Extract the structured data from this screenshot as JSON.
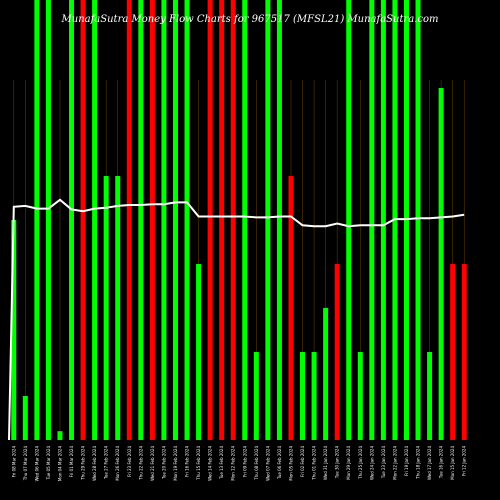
{
  "chart_data": {
    "type": "bar",
    "title": "MunafaSutra Money Flow Charts for 967517 (MFSL21) MunafaSutra.com",
    "colors": {
      "background": "#000000",
      "up": "#00ff00",
      "down": "#ff0000",
      "line": "#ffffff",
      "grid": "#5a3a00"
    },
    "ylim": [
      0,
      100
    ],
    "bars": [
      {
        "date": "Fri 08 Mar 2024",
        "value": 50,
        "color": "up"
      },
      {
        "date": "Thu 07 Mar 2024",
        "value": 10,
        "color": "up"
      },
      {
        "date": "Wed 06 Mar 2024",
        "value": 100,
        "color": "up"
      },
      {
        "date": "Tue 05 Mar 2024",
        "value": 100,
        "color": "up"
      },
      {
        "date": "Mon 04 Mar 2024",
        "value": 2,
        "color": "up"
      },
      {
        "date": "Fri 01 Mar 2024",
        "value": 100,
        "color": "up"
      },
      {
        "date": "Thu 29 Feb 2024",
        "value": 100,
        "color": "down"
      },
      {
        "date": "Wed 28 Feb 2024",
        "value": 100,
        "color": "up"
      },
      {
        "date": "Tue 27 Feb 2024",
        "value": 60,
        "color": "up"
      },
      {
        "date": "Mon 26 Feb 2024",
        "value": 60,
        "color": "up"
      },
      {
        "date": "Fri 23 Feb 2024",
        "value": 100,
        "color": "down"
      },
      {
        "date": "Thu 22 Feb 2024",
        "value": 100,
        "color": "up"
      },
      {
        "date": "Wed 21 Feb 2024",
        "value": 100,
        "color": "down"
      },
      {
        "date": "Tue 20 Feb 2024",
        "value": 100,
        "color": "up"
      },
      {
        "date": "Mon 19 Feb 2024",
        "value": 100,
        "color": "up"
      },
      {
        "date": "Fri 16 Feb 2024",
        "value": 100,
        "color": "up"
      },
      {
        "date": "Thu 15 Feb 2024",
        "value": 40,
        "color": "up"
      },
      {
        "date": "Wed 14 Feb 2024",
        "value": 100,
        "color": "down"
      },
      {
        "date": "Tue 13 Feb 2024",
        "value": 100,
        "color": "down"
      },
      {
        "date": "Mon 12 Feb 2024",
        "value": 100,
        "color": "down"
      },
      {
        "date": "Fri 09 Feb 2024",
        "value": 100,
        "color": "up"
      },
      {
        "date": "Thu 08 Feb 2024",
        "value": 20,
        "color": "up"
      },
      {
        "date": "Wed 07 Feb 2024",
        "value": 100,
        "color": "up"
      },
      {
        "date": "Tue 06 Feb 2024",
        "value": 100,
        "color": "up"
      },
      {
        "date": "Mon 05 Feb 2024",
        "value": 60,
        "color": "down"
      },
      {
        "date": "Fri 02 Feb 2024",
        "value": 20,
        "color": "up"
      },
      {
        "date": "Thu 01 Feb 2024",
        "value": 20,
        "color": "up"
      },
      {
        "date": "Wed 31 Jan 2024",
        "value": 30,
        "color": "up"
      },
      {
        "date": "Tue 30 Jan 2024",
        "value": 40,
        "color": "down"
      },
      {
        "date": "Mon 29 Jan 2024",
        "value": 100,
        "color": "up"
      },
      {
        "date": "Thu 25 Jan 2024",
        "value": 20,
        "color": "up"
      },
      {
        "date": "Wed 24 Jan 2024",
        "value": 100,
        "color": "up"
      },
      {
        "date": "Tue 23 Jan 2024",
        "value": 100,
        "color": "up"
      },
      {
        "date": "Mon 22 Jan 2024",
        "value": 100,
        "color": "up"
      },
      {
        "date": "Fri 19 Jan 2024",
        "value": 100,
        "color": "up"
      },
      {
        "date": "Thu 18 Jan 2024",
        "value": 100,
        "color": "up"
      },
      {
        "date": "Wed 17 Jan 2024",
        "value": 20,
        "color": "up"
      },
      {
        "date": "Tue 16 Jan 2024",
        "value": 80,
        "color": "up"
      },
      {
        "date": "Mon 15 Jan 2024",
        "value": 40,
        "color": "down"
      },
      {
        "date": "Fri 12 Jan 2024",
        "value": 40,
        "color": "down"
      }
    ],
    "line": [
      53,
      53.2,
      52.6,
      52.6,
      54.6,
      52.4,
      52,
      52.6,
      52.8,
      53.2,
      53.4,
      53.4,
      53.6,
      53.6,
      54,
      54,
      50.8,
      50.8,
      50.8,
      50.8,
      50.8,
      50.6,
      50.6,
      50.8,
      50.8,
      48.8,
      48.6,
      48.6,
      49.2,
      48.6,
      48.8,
      48.8,
      48.8,
      50.2,
      50.2,
      50.4,
      50.4,
      50.6,
      50.8,
      51.2
    ]
  }
}
